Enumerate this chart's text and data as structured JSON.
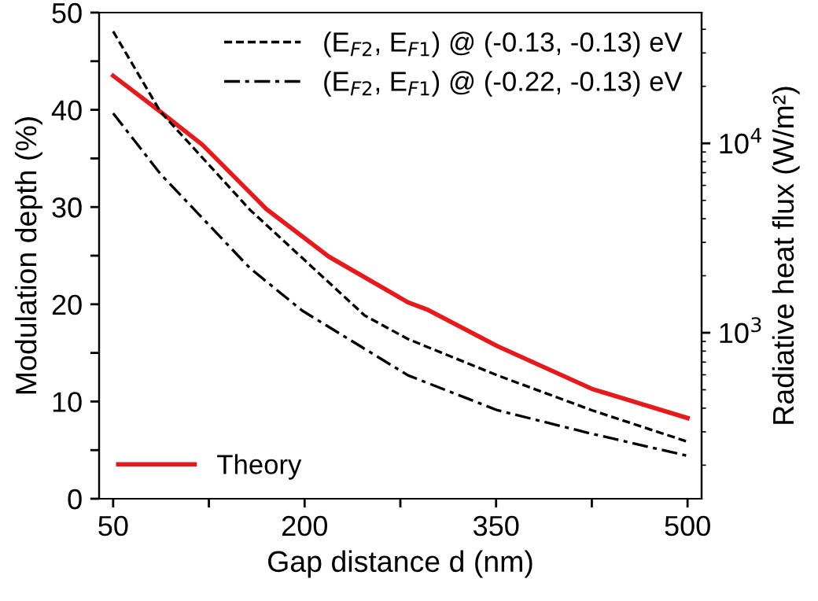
{
  "chart_data": {
    "type": "line",
    "xlabel": "Gap distance d (nm)",
    "ylabel": "Modulation depth (%)",
    "y2label": "Radiative heat flux (W/m²)",
    "xlim": [
      39,
      511
    ],
    "xticks": [
      50,
      {
        "value": 125,
        "label": null
      },
      200,
      {
        "value": 275,
        "label": null
      },
      350,
      {
        "value": 425,
        "label": null
      },
      500
    ],
    "ylim": [
      0,
      50
    ],
    "yticks": [
      0,
      {
        "value": 5,
        "label": null
      },
      10,
      {
        "value": 15,
        "label": null
      },
      20,
      {
        "value": 25,
        "label": null
      },
      30,
      {
        "value": 35,
        "label": null
      },
      40,
      {
        "value": 45,
        "label": null
      },
      50
    ],
    "log": "y2",
    "y2lim": [
      133,
      49000
    ],
    "y2ticks": [
      {
        "value": 1000,
        "label": "10$^{3}$"
      },
      {
        "value": 10000,
        "label": "10$^{4}$"
      }
    ],
    "legend": "top right",
    "series": [
      {
        "name": "Theory",
        "color": "#e41a1c",
        "axis": "y",
        "line_style": "solid",
        "x": [
          50,
          87,
          120,
          170,
          219,
          281,
          297,
          351,
          425,
          500
        ],
        "values": [
          43.5,
          39.8,
          36.4,
          29.8,
          24.9,
          20.2,
          19.4,
          15.7,
          11.3,
          8.3
        ]
      },
      {
        "name": "(E$_{F2}$, E$_{F1}$) @ (-0.13, -0.13) eV",
        "color": "#000000",
        "axis": "y2",
        "line_style": "dashed",
        "x": [
          50,
          87,
          157,
          247,
          281,
          351,
          425,
          500
        ],
        "values": [
          39000,
          14700,
          4470,
          1235,
          926,
          596,
          390,
          266
        ]
      },
      {
        "name": "(E$_{F2}$, E$_{F1}$) @ (-0.22, -0.13) eV",
        "color": "#000000",
        "axis": "y2",
        "line_style": "dashdot",
        "x": [
          50,
          87,
          157,
          198,
          281,
          351,
          425,
          500
        ],
        "values": [
          14400,
          6900,
          2200,
          1310,
          596,
          390,
          293,
          224
        ]
      }
    ]
  }
}
